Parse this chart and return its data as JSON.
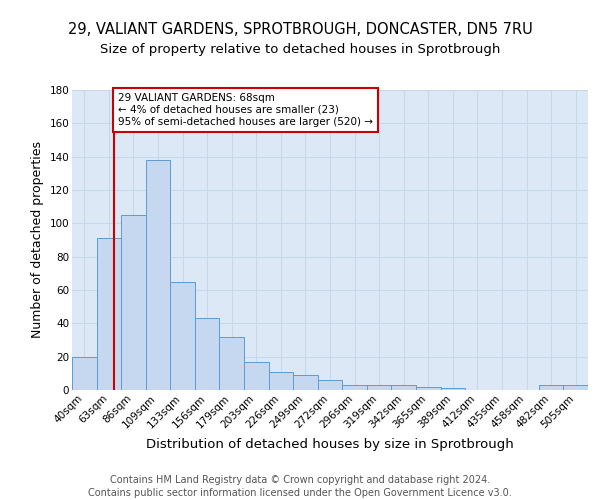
{
  "title_line1": "29, VALIANT GARDENS, SPROTBROUGH, DONCASTER, DN5 7RU",
  "title_line2": "Size of property relative to detached houses in Sprotbrough",
  "xlabel": "Distribution of detached houses by size in Sprotbrough",
  "ylabel": "Number of detached properties",
  "categories": [
    "40sqm",
    "63sqm",
    "86sqm",
    "109sqm",
    "133sqm",
    "156sqm",
    "179sqm",
    "203sqm",
    "226sqm",
    "249sqm",
    "272sqm",
    "296sqm",
    "319sqm",
    "342sqm",
    "365sqm",
    "389sqm",
    "412sqm",
    "435sqm",
    "458sqm",
    "482sqm",
    "505sqm"
  ],
  "values": [
    20,
    91,
    105,
    138,
    65,
    43,
    32,
    17,
    11,
    9,
    6,
    3,
    3,
    3,
    2,
    1,
    0,
    0,
    0,
    3,
    3
  ],
  "bar_color": "#c5d8f0",
  "bar_edge_color": "#5b9bd5",
  "grid_color": "#c8d8ea",
  "background_color": "#dce8f5",
  "annotation_box_text": "29 VALIANT GARDENS: 68sqm\n← 4% of detached houses are smaller (23)\n95% of semi-detached houses are larger (520) →",
  "annotation_box_color": "#ffffff",
  "annotation_box_edge_color": "#cc0000",
  "ylim": [
    0,
    180
  ],
  "yticks": [
    0,
    20,
    40,
    60,
    80,
    100,
    120,
    140,
    160,
    180
  ],
  "footer_line1": "Contains HM Land Registry data © Crown copyright and database right 2024.",
  "footer_line2": "Contains public sector information licensed under the Open Government Licence v3.0.",
  "title_fontsize": 10.5,
  "subtitle_fontsize": 9.5,
  "axis_label_fontsize": 9,
  "tick_fontsize": 7.5,
  "footer_fontsize": 7,
  "red_line_color": "#cc0000"
}
